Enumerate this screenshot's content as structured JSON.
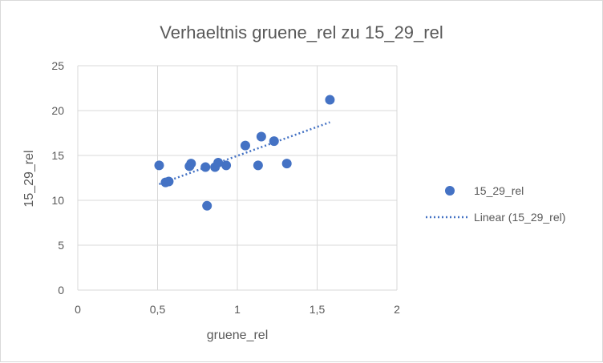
{
  "chart_data": {
    "type": "scatter",
    "title": "Verhaeltnis gruene_rel zu 15_29_rel",
    "xlabel": "gruene_rel",
    "ylabel": "15_29_rel",
    "xlim": [
      0,
      2
    ],
    "ylim": [
      0,
      25
    ],
    "x_ticks": [
      0,
      0.5,
      1,
      1.5,
      2
    ],
    "x_tick_labels": [
      "0",
      "0,5",
      "1",
      "1,5",
      "2"
    ],
    "y_ticks": [
      0,
      5,
      10,
      15,
      20,
      25
    ],
    "y_tick_labels": [
      "0",
      "5",
      "10",
      "15",
      "20",
      "25"
    ],
    "grid": true,
    "legend_position": "right",
    "series": [
      {
        "name": "15_29_rel",
        "color": "#4472c4",
        "points": [
          {
            "x": 0.51,
            "y": 13.9
          },
          {
            "x": 0.55,
            "y": 12.0
          },
          {
            "x": 0.57,
            "y": 12.1
          },
          {
            "x": 0.7,
            "y": 13.8
          },
          {
            "x": 0.71,
            "y": 14.1
          },
          {
            "x": 0.8,
            "y": 13.7
          },
          {
            "x": 0.81,
            "y": 9.4
          },
          {
            "x": 0.86,
            "y": 13.7
          },
          {
            "x": 0.88,
            "y": 14.2
          },
          {
            "x": 0.93,
            "y": 13.9
          },
          {
            "x": 1.05,
            "y": 16.1
          },
          {
            "x": 1.13,
            "y": 13.9
          },
          {
            "x": 1.15,
            "y": 17.1
          },
          {
            "x": 1.23,
            "y": 16.6
          },
          {
            "x": 1.31,
            "y": 14.1
          },
          {
            "x": 1.58,
            "y": 21.2
          }
        ]
      }
    ],
    "trendline": {
      "name": "Linear (15_29_rel)",
      "type": "linear",
      "color": "#4472c4",
      "x": [
        0.51,
        1.58
      ],
      "y": [
        11.8,
        18.7
      ]
    }
  }
}
